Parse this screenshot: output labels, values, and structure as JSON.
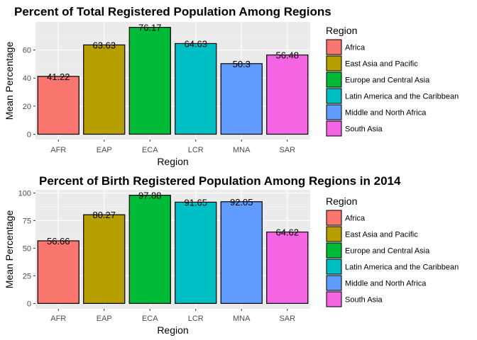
{
  "chart_data": [
    {
      "type": "bar",
      "title": "Percent of Total Registered Population Among Regions",
      "xlabel": "Region",
      "ylabel": "Mean Percentage",
      "categories": [
        "AFR",
        "EAP",
        "ECA",
        "LCR",
        "MNA",
        "SAR"
      ],
      "values": [
        41.22,
        63.63,
        76.17,
        64.63,
        50.3,
        56.48
      ],
      "data_labels": [
        "41.22",
        "63.63",
        "76.17",
        "64.63",
        "50.3",
        "56.48"
      ],
      "colors": [
        "#F8766D",
        "#B79F00",
        "#00BA38",
        "#00BFC4",
        "#619CFF",
        "#F564E3"
      ],
      "yticks": [
        0,
        20,
        40,
        60
      ],
      "ylim": [
        -3.8,
        80
      ],
      "grid": true,
      "legend": {
        "title": "Region",
        "position": "right",
        "entries": [
          "Africa",
          "East Asia and Pacific",
          "Europe and Central Asia",
          "Latin America and the Caribbean",
          "Middle and North Africa",
          "South Asia"
        ]
      }
    },
    {
      "type": "bar",
      "title": "Percent of Birth Registered Population Among Regions in 2014",
      "xlabel": "Region",
      "ylabel": "Mean Percentage",
      "categories": [
        "AFR",
        "EAP",
        "ECA",
        "LCR",
        "MNA",
        "SAR"
      ],
      "values": [
        56.66,
        80.27,
        97.88,
        91.65,
        92.05,
        64.62
      ],
      "data_labels": [
        "56.66",
        "80.27",
        "97.88",
        "91.65",
        "92.05",
        "64.62"
      ],
      "colors": [
        "#F8766D",
        "#B79F00",
        "#00BA38",
        "#00BFC4",
        "#619CFF",
        "#F564E3"
      ],
      "yticks": [
        0,
        25,
        50,
        75,
        100
      ],
      "ylim": [
        -4.9,
        102.8
      ],
      "grid": true,
      "legend": {
        "title": "Region",
        "position": "right",
        "entries": [
          "Africa",
          "East Asia and Pacific",
          "Europe and Central Asia",
          "Latin America and the Caribbean",
          "Middle and North Africa",
          "South Asia"
        ]
      }
    }
  ]
}
